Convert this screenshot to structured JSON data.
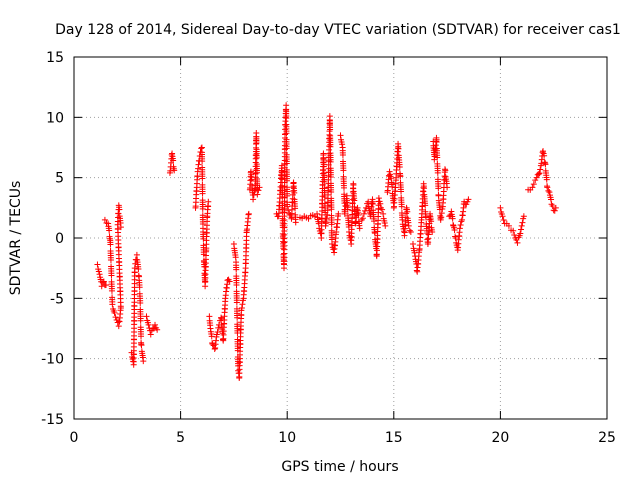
{
  "chart_data": {
    "type": "scatter",
    "title": "Day 128 of 2014, Sidereal Day-to-day VTEC variation (SDTVAR) for receiver cas1",
    "xlabel": "GPS time / hours",
    "ylabel": "SDTVAR / TECUs",
    "xlim": [
      0,
      25
    ],
    "ylim": [
      -15,
      15
    ],
    "xticks": [
      0,
      5,
      10,
      15,
      20,
      25
    ],
    "yticks": [
      -15,
      -10,
      -5,
      0,
      5,
      10,
      15
    ],
    "grid": true,
    "marker": "+",
    "color": "#ff0000",
    "segments": [
      {
        "x0": 1.1,
        "x1": 1.5,
        "points": [
          [
            1.1,
            -2.2
          ],
          [
            1.2,
            -3.0
          ],
          [
            1.3,
            -4.0
          ],
          [
            1.4,
            -3.6
          ],
          [
            1.5,
            -3.9
          ]
        ]
      },
      {
        "x0": 1.45,
        "x1": 2.3,
        "points": [
          [
            1.45,
            1.5
          ],
          [
            1.6,
            1.2
          ],
          [
            1.7,
            -0.2
          ],
          [
            1.8,
            -5.5
          ],
          [
            1.9,
            -6.2
          ],
          [
            2.0,
            -6.8
          ],
          [
            2.1,
            -7.3
          ],
          [
            2.2,
            -5.8
          ],
          [
            2.05,
            1.1
          ],
          [
            2.1,
            2.7
          ],
          [
            2.2,
            0.9
          ]
        ]
      },
      {
        "x0": 2.7,
        "x1": 3.3,
        "points": [
          [
            2.7,
            -9.5
          ],
          [
            2.8,
            -10.5
          ],
          [
            2.85,
            -2.5
          ],
          [
            2.95,
            -1.4
          ],
          [
            3.05,
            -3.2
          ],
          [
            3.1,
            -5.0
          ],
          [
            3.15,
            -8.8
          ],
          [
            3.25,
            -10.2
          ]
        ]
      },
      {
        "x0": 3.4,
        "x1": 3.9,
        "points": [
          [
            3.4,
            -6.5
          ],
          [
            3.5,
            -7.2
          ],
          [
            3.6,
            -8.0
          ],
          [
            3.7,
            -7.5
          ],
          [
            3.8,
            -7.2
          ],
          [
            3.9,
            -7.6
          ]
        ]
      },
      {
        "x0": 4.5,
        "x1": 4.7,
        "points": [
          [
            4.5,
            5.4
          ],
          [
            4.6,
            7.0
          ],
          [
            4.7,
            5.6
          ]
        ]
      },
      {
        "x0": 5.7,
        "x1": 6.3,
        "points": [
          [
            5.7,
            2.5
          ],
          [
            5.8,
            5.5
          ],
          [
            5.9,
            6.8
          ],
          [
            6.0,
            7.5
          ],
          [
            6.05,
            0.8
          ],
          [
            6.1,
            -2.0
          ],
          [
            6.15,
            -4.0
          ],
          [
            6.2,
            -1.0
          ],
          [
            6.25,
            1.8
          ],
          [
            6.3,
            3.0
          ]
        ]
      },
      {
        "x0": 6.3,
        "x1": 7.3,
        "points": [
          [
            6.35,
            -6.5
          ],
          [
            6.4,
            -7.5
          ],
          [
            6.5,
            -8.8
          ],
          [
            6.6,
            -9.2
          ],
          [
            6.7,
            -8.0
          ],
          [
            6.8,
            -7.2
          ],
          [
            6.9,
            -6.6
          ],
          [
            7.0,
            -8.5
          ],
          [
            7.1,
            -5.0
          ],
          [
            7.2,
            -3.5
          ],
          [
            7.3,
            -3.6
          ]
        ]
      },
      {
        "x0": 7.5,
        "x1": 8.2,
        "points": [
          [
            7.5,
            -0.5
          ],
          [
            7.6,
            -2.0
          ],
          [
            7.7,
            -11.0
          ],
          [
            7.75,
            -11.6
          ],
          [
            7.85,
            -6.0
          ],
          [
            7.95,
            -5.0
          ],
          [
            8.05,
            -2.5
          ],
          [
            8.1,
            0.6
          ],
          [
            8.2,
            2.0
          ]
        ]
      },
      {
        "x0": 8.2,
        "x1": 8.7,
        "points": [
          [
            8.25,
            4.0
          ],
          [
            8.3,
            5.5
          ],
          [
            8.4,
            3.2
          ],
          [
            8.5,
            4.0
          ],
          [
            8.55,
            8.7
          ],
          [
            8.6,
            3.6
          ],
          [
            8.7,
            4.2
          ]
        ]
      },
      {
        "x0": 9.5,
        "x1": 10.4,
        "points": [
          [
            9.5,
            2.0
          ],
          [
            9.6,
            1.8
          ],
          [
            9.7,
            4.6
          ],
          [
            9.75,
            6.0
          ],
          [
            9.8,
            0.0
          ],
          [
            9.85,
            -2.5
          ],
          [
            9.9,
            9.0
          ],
          [
            9.95,
            11.0
          ],
          [
            10.0,
            2.6
          ],
          [
            10.1,
            2.0
          ],
          [
            10.2,
            1.6
          ],
          [
            10.3,
            4.6
          ],
          [
            10.4,
            1.3
          ]
        ]
      },
      {
        "x0": 10.6,
        "x1": 12.5,
        "points": [
          [
            10.6,
            1.7
          ],
          [
            10.8,
            1.8
          ],
          [
            11.0,
            1.6
          ],
          [
            11.2,
            1.9
          ],
          [
            11.4,
            2.0
          ],
          [
            11.5,
            0.8
          ],
          [
            11.6,
            0.0
          ],
          [
            11.7,
            7.0
          ],
          [
            11.8,
            1.0
          ],
          [
            11.9,
            2.3
          ],
          [
            12.0,
            10.1
          ],
          [
            12.1,
            -0.5
          ],
          [
            12.2,
            -1.2
          ],
          [
            12.3,
            0.5
          ],
          [
            12.4,
            2.0
          ]
        ]
      },
      {
        "x0": 12.5,
        "x1": 13.5,
        "points": [
          [
            12.5,
            8.5
          ],
          [
            12.6,
            7.5
          ],
          [
            12.7,
            2.0
          ],
          [
            12.8,
            3.5
          ],
          [
            12.9,
            0.5
          ],
          [
            13.0,
            -0.5
          ],
          [
            13.1,
            4.5
          ],
          [
            13.2,
            1.2
          ],
          [
            13.3,
            2.5
          ],
          [
            13.4,
            0.8
          ]
        ]
      },
      {
        "x0": 13.5,
        "x1": 14.6,
        "points": [
          [
            13.5,
            1.5
          ],
          [
            13.6,
            2.0
          ],
          [
            13.7,
            2.5
          ],
          [
            13.8,
            3.0
          ],
          [
            13.9,
            1.8
          ],
          [
            14.0,
            3.2
          ],
          [
            14.1,
            0.5
          ],
          [
            14.2,
            -1.5
          ],
          [
            14.3,
            3.3
          ],
          [
            14.4,
            2.5
          ],
          [
            14.5,
            2.0
          ],
          [
            14.6,
            1.0
          ]
        ]
      },
      {
        "x0": 14.6,
        "x1": 15.8,
        "points": [
          [
            14.7,
            3.8
          ],
          [
            14.8,
            5.5
          ],
          [
            14.9,
            4.6
          ],
          [
            15.0,
            2.5
          ],
          [
            15.1,
            4.8
          ],
          [
            15.2,
            7.8
          ],
          [
            15.3,
            5.2
          ],
          [
            15.4,
            1.5
          ],
          [
            15.5,
            0.2
          ],
          [
            15.6,
            2.5
          ],
          [
            15.7,
            1.0
          ],
          [
            15.8,
            0.5
          ]
        ]
      },
      {
        "x0": 15.8,
        "x1": 16.8,
        "points": [
          [
            15.9,
            -0.5
          ],
          [
            16.0,
            -1.5
          ],
          [
            16.1,
            -2.8
          ],
          [
            16.2,
            -1.0
          ],
          [
            16.3,
            1.5
          ],
          [
            16.4,
            4.5
          ],
          [
            16.5,
            1.8
          ],
          [
            16.6,
            -0.5
          ],
          [
            16.7,
            2.0
          ],
          [
            16.8,
            0.5
          ]
        ]
      },
      {
        "x0": 16.8,
        "x1": 17.5,
        "points": [
          [
            16.85,
            8.0
          ],
          [
            16.9,
            6.5
          ],
          [
            17.0,
            8.3
          ],
          [
            17.1,
            3.5
          ],
          [
            17.2,
            1.5
          ],
          [
            17.3,
            2.6
          ],
          [
            17.4,
            5.7
          ],
          [
            17.5,
            4.2
          ]
        ]
      },
      {
        "x0": 17.6,
        "x1": 18.6,
        "points": [
          [
            17.6,
            1.8
          ],
          [
            17.7,
            2.2
          ],
          [
            17.8,
            1.0
          ],
          [
            17.9,
            0.0
          ],
          [
            18.0,
            -1.0
          ],
          [
            18.1,
            0.8
          ],
          [
            18.2,
            1.5
          ],
          [
            18.3,
            3.0
          ],
          [
            18.4,
            2.8
          ],
          [
            18.5,
            3.2
          ]
        ]
      },
      {
        "x0": 20.0,
        "x1": 21.1,
        "points": [
          [
            20.0,
            2.5
          ],
          [
            20.1,
            1.8
          ],
          [
            20.2,
            1.2
          ],
          [
            20.4,
            1.0
          ],
          [
            20.6,
            0.6
          ],
          [
            20.7,
            0.0
          ],
          [
            20.8,
            -0.4
          ],
          [
            20.9,
            0.2
          ],
          [
            21.0,
            1.0
          ],
          [
            21.1,
            1.8
          ]
        ]
      },
      {
        "x0": 21.3,
        "x1": 22.6,
        "points": [
          [
            21.3,
            4.0
          ],
          [
            21.5,
            4.2
          ],
          [
            21.7,
            5.0
          ],
          [
            21.8,
            5.3
          ],
          [
            21.9,
            6.0
          ],
          [
            22.0,
            7.2
          ],
          [
            22.1,
            6.2
          ],
          [
            22.2,
            4.2
          ],
          [
            22.3,
            3.8
          ],
          [
            22.4,
            2.8
          ],
          [
            22.5,
            2.3
          ],
          [
            22.6,
            2.5
          ]
        ]
      }
    ]
  }
}
